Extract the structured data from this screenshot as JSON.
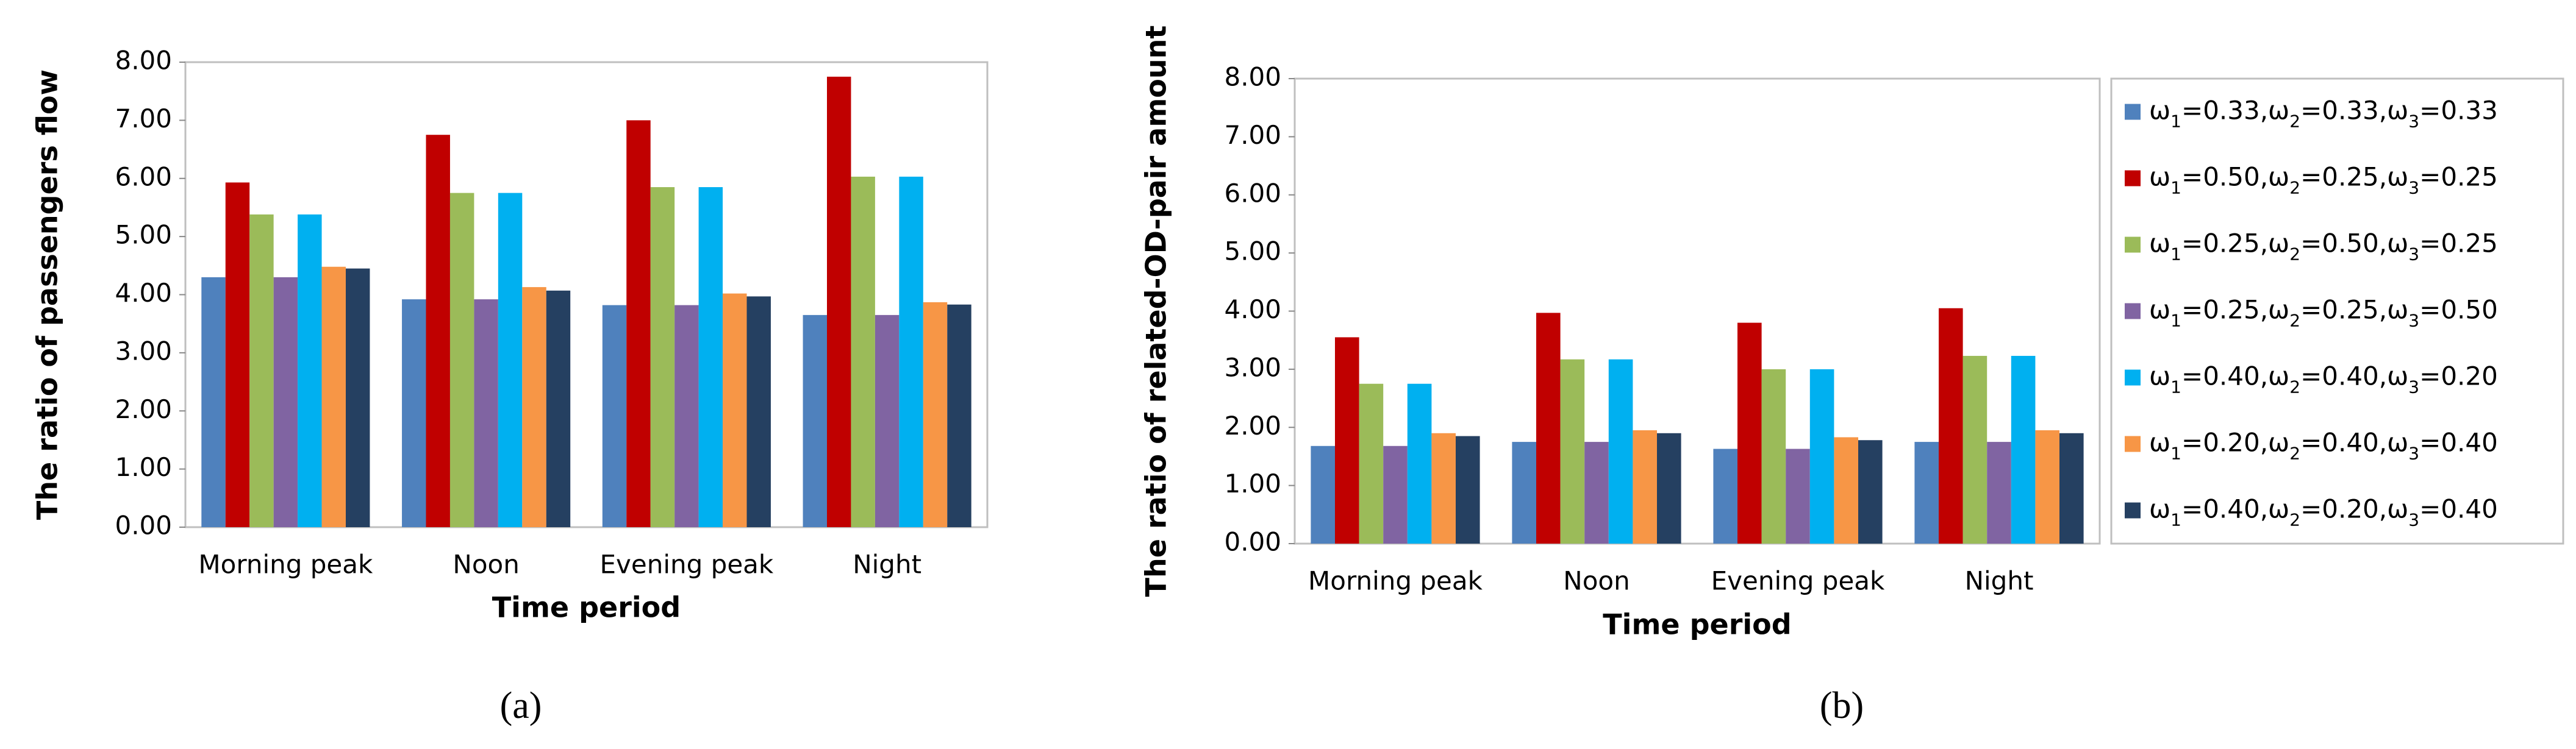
{
  "chart_data": [
    {
      "type": "bar",
      "y_label": "The ratio of passengers flow",
      "x_label": "Time period",
      "caption": "(a)",
      "categories": [
        "Morning peak",
        "Noon",
        "Evening peak",
        "Night"
      ],
      "ylim": [
        0,
        8
      ],
      "yticks": [
        {
          "value": 0,
          "label": "0.00"
        },
        {
          "value": 1,
          "label": "1.00"
        },
        {
          "value": 2,
          "label": "2.00"
        },
        {
          "value": 3,
          "label": "3.00"
        },
        {
          "value": 4,
          "label": "4.00"
        },
        {
          "value": 5,
          "label": "5.00"
        },
        {
          "value": 6,
          "label": "6.00"
        },
        {
          "value": 7,
          "label": "7.00"
        },
        {
          "value": 8,
          "label": "8.00"
        }
      ],
      "series": [
        {
          "color": "#4f81bd",
          "values": [
            4.3,
            3.92,
            3.82,
            3.65
          ]
        },
        {
          "color": "#c00000",
          "values": [
            5.93,
            6.75,
            7.0,
            7.75
          ]
        },
        {
          "color": "#9bbb59",
          "values": [
            5.38,
            5.75,
            5.85,
            6.03
          ]
        },
        {
          "color": "#8064a2",
          "values": [
            4.3,
            3.92,
            3.82,
            3.65
          ]
        },
        {
          "color": "#00b0f0",
          "values": [
            5.38,
            5.75,
            5.85,
            6.03
          ]
        },
        {
          "color": "#f79646",
          "values": [
            4.48,
            4.13,
            4.02,
            3.87
          ]
        },
        {
          "color": "#254061",
          "values": [
            4.45,
            4.07,
            3.97,
            3.83
          ]
        }
      ]
    },
    {
      "type": "bar",
      "y_label": "The ratio of related-OD-pair amount",
      "x_label": "Time period",
      "caption": "(b)",
      "categories": [
        "Morning peak",
        "Noon",
        "Evening peak",
        "Night"
      ],
      "ylim": [
        0,
        8
      ],
      "legend": "right",
      "yticks": [
        {
          "value": 0,
          "label": "0.00"
        },
        {
          "value": 1,
          "label": "1.00"
        },
        {
          "value": 2,
          "label": "2.00"
        },
        {
          "value": 3,
          "label": "3.00"
        },
        {
          "value": 4,
          "label": "4.00"
        },
        {
          "value": 5,
          "label": "5.00"
        },
        {
          "value": 6,
          "label": "6.00"
        },
        {
          "value": 7,
          "label": "7.00"
        },
        {
          "value": 8,
          "label": "8.00"
        }
      ],
      "series": [
        {
          "name": "ω1=0.33,ω2=0.33,ω3=0.33",
          "color": "#4f81bd",
          "values": [
            1.68,
            1.75,
            1.63,
            1.75
          ]
        },
        {
          "name": "ω1=0.50,ω2=0.25,ω3=0.25",
          "color": "#c00000",
          "values": [
            3.55,
            3.97,
            3.8,
            4.05
          ]
        },
        {
          "name": "ω1=0.25,ω2=0.50,ω3=0.25",
          "color": "#9bbb59",
          "values": [
            2.75,
            3.17,
            3.0,
            3.23
          ]
        },
        {
          "name": "ω1=0.25,ω2=0.25,ω3=0.50",
          "color": "#8064a2",
          "values": [
            1.68,
            1.75,
            1.63,
            1.75
          ]
        },
        {
          "name": "ω1=0.40,ω2=0.40,ω3=0.20",
          "color": "#00b0f0",
          "values": [
            2.75,
            3.17,
            3.0,
            3.23
          ]
        },
        {
          "name": "ω1=0.20,ω2=0.40,ω3=0.40",
          "color": "#f79646",
          "values": [
            1.9,
            1.95,
            1.83,
            1.95
          ]
        },
        {
          "name": "ω1=0.40,ω2=0.20,ω3=0.40",
          "color": "#254061",
          "values": [
            1.85,
            1.9,
            1.78,
            1.9
          ]
        }
      ]
    }
  ]
}
